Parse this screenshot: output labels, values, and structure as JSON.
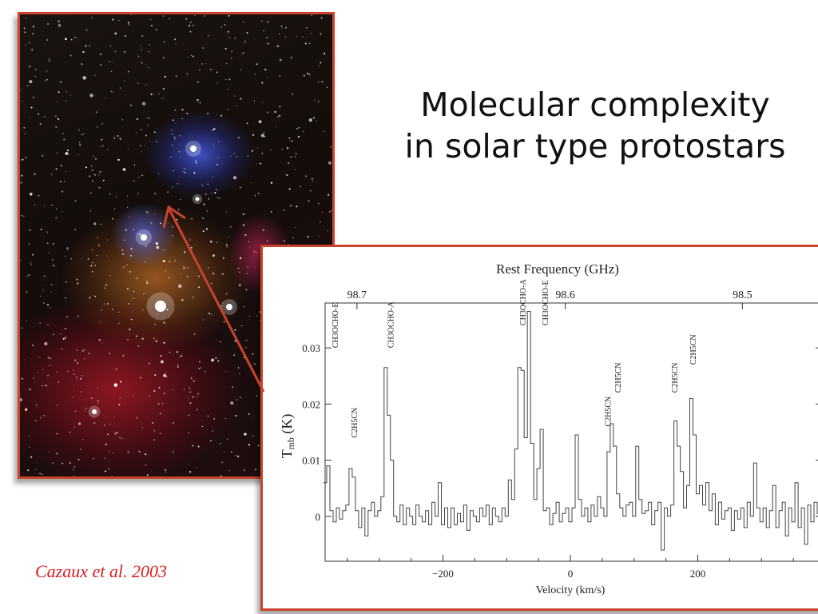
{
  "slide": {
    "title_line1": "Molecular complexity",
    "title_line2": "in solar type protostars",
    "citation": "Cazaux et al. 2003"
  },
  "colors": {
    "frame": "#c8442c",
    "citation": "#d81e1e",
    "arrow": "#c8442c"
  },
  "chart_data": {
    "type": "line",
    "top_axis_label": "Rest Frequency (GHz)",
    "top_ticks": [
      "98.7",
      "98.6",
      "98.5"
    ],
    "top_tick_values": [
      -335,
      -8,
      270
    ],
    "xlabel": "Velocity (km/s)",
    "ylabel": "T",
    "ylabel_sub": "mb",
    "ylabel_unit": "(K)",
    "x_ticks": [
      -200,
      0,
      200
    ],
    "x_tick_labels": [
      "−200",
      "0",
      "200"
    ],
    "y_ticks": [
      0,
      0.01,
      0.02,
      0.03
    ],
    "y_tick_labels": [
      "0",
      "0.01",
      "0.02",
      "0.03"
    ],
    "xlim": [
      -385,
      395
    ],
    "ylim": [
      -0.008,
      0.038
    ],
    "line_labels": [
      {
        "text": "CH3OCHO-E",
        "x": -370,
        "y": 0.03
      },
      {
        "text": "C2H5CN",
        "x": -340,
        "y": 0.014
      },
      {
        "text": "CH3OCHO-A",
        "x": -283,
        "y": 0.03
      },
      {
        "text": "CH3OCHO-A",
        "x": -75,
        "y": 0.034
      },
      {
        "text": "CH3OCHO-E",
        "x": -40,
        "y": 0.034
      },
      {
        "text": "C2H5CN",
        "x": 58,
        "y": 0.016
      },
      {
        "text": "C2H5CN",
        "x": 74,
        "y": 0.022
      },
      {
        "text": "C2H5CN",
        "x": 163,
        "y": 0.022
      },
      {
        "text": "C2H5CN",
        "x": 192,
        "y": 0.027
      }
    ],
    "series": [
      {
        "values": [
          [
            -385,
            0.006
          ],
          [
            -380,
            0.009
          ],
          [
            -375,
            0.001
          ],
          [
            -370,
            -0.001
          ],
          [
            -365,
            0.0015
          ],
          [
            -360,
            -0.0005
          ],
          [
            -355,
            0.001
          ],
          [
            -350,
            0.002
          ],
          [
            -345,
            0.0085
          ],
          [
            -340,
            0.007
          ],
          [
            -335,
            0.001
          ],
          [
            -330,
            -0.002
          ],
          [
            -325,
            0.0015
          ],
          [
            -320,
            -0.0035
          ],
          [
            -315,
            0.001
          ],
          [
            -310,
            0.0025
          ],
          [
            -305,
            0.0
          ],
          [
            -300,
            0.001
          ],
          [
            -295,
            0.0035
          ],
          [
            -290,
            0.0265
          ],
          [
            -285,
            0.018
          ],
          [
            -280,
            0.01
          ],
          [
            -275,
            0.0
          ],
          [
            -270,
            -0.001
          ],
          [
            -265,
            0.002
          ],
          [
            -260,
            -0.0015
          ],
          [
            -255,
            0.0015
          ],
          [
            -250,
            0.0
          ],
          [
            -245,
            -0.0015
          ],
          [
            -240,
            0.002
          ],
          [
            -235,
            0.0
          ],
          [
            -230,
            -0.001
          ],
          [
            -225,
            0.001
          ],
          [
            -220,
            -0.0015
          ],
          [
            -215,
            0.0025
          ],
          [
            -210,
            0.0
          ],
          [
            -205,
            0.006
          ],
          [
            -200,
            -0.0015
          ],
          [
            -195,
            0.0015
          ],
          [
            -190,
            -0.002
          ],
          [
            -185,
            0.0015
          ],
          [
            -180,
            -0.0015
          ],
          [
            -175,
            0.0005
          ],
          [
            -170,
            -0.001
          ],
          [
            -165,
            0.002
          ],
          [
            -160,
            -0.0025
          ],
          [
            -155,
            0.001
          ],
          [
            -150,
            0.0
          ],
          [
            -145,
            -0.001
          ],
          [
            -140,
            0.0015
          ],
          [
            -135,
            0.0
          ],
          [
            -130,
            0.002
          ],
          [
            -125,
            -0.0015
          ],
          [
            -120,
            0.0015
          ],
          [
            -115,
            0.0
          ],
          [
            -110,
            -0.001
          ],
          [
            -105,
            0.0015
          ],
          [
            -100,
            0.0
          ],
          [
            -95,
            0.0065
          ],
          [
            -90,
            0.003
          ],
          [
            -85,
            0.012
          ],
          [
            -80,
            0.0265
          ],
          [
            -75,
            0.026
          ],
          [
            -70,
            0.014
          ],
          [
            -65,
            0.0365
          ],
          [
            -60,
            0.013
          ],
          [
            -55,
            0.003
          ],
          [
            -50,
            0.0085
          ],
          [
            -45,
            0.0155
          ],
          [
            -40,
            0.001
          ],
          [
            -35,
            0.0015
          ],
          [
            -30,
            -0.0015
          ],
          [
            -25,
            0.0005
          ],
          [
            -20,
            0.0025
          ],
          [
            -15,
            -0.001
          ],
          [
            -10,
            0.0005
          ],
          [
            -5,
            0.0015
          ],
          [
            0,
            -0.001
          ],
          [
            5,
            0.0015
          ],
          [
            10,
            0.0145
          ],
          [
            15,
            0.003
          ],
          [
            20,
            0.0
          ],
          [
            25,
            0.0015
          ],
          [
            30,
            -0.001
          ],
          [
            35,
            0.002
          ],
          [
            40,
            0.0
          ],
          [
            45,
            0.0035
          ],
          [
            50,
            0.0015
          ],
          [
            55,
            0.0
          ],
          [
            60,
            0.0115
          ],
          [
            65,
            0.0165
          ],
          [
            70,
            0.0125
          ],
          [
            75,
            0.004
          ],
          [
            80,
            0.0015
          ],
          [
            85,
            0.0
          ],
          [
            90,
            0.002
          ],
          [
            95,
            0.0025
          ],
          [
            100,
            0.0
          ],
          [
            105,
            0.0125
          ],
          [
            110,
            0.003
          ],
          [
            115,
            0.0005
          ],
          [
            120,
            0.001
          ],
          [
            125,
            0.0025
          ],
          [
            130,
            -0.0015
          ],
          [
            135,
            0.001
          ],
          [
            140,
            0.0025
          ],
          [
            145,
            -0.006
          ],
          [
            150,
            0.0015
          ],
          [
            155,
            0.0
          ],
          [
            160,
            0.002
          ],
          [
            165,
            0.017
          ],
          [
            170,
            0.0125
          ],
          [
            175,
            0.008
          ],
          [
            180,
            0.0015
          ],
          [
            185,
            0.0055
          ],
          [
            190,
            0.021
          ],
          [
            195,
            0.0145
          ],
          [
            200,
            0.004
          ],
          [
            205,
            0.0055
          ],
          [
            210,
            0.002
          ],
          [
            215,
            0.006
          ],
          [
            220,
            0.001
          ],
          [
            225,
            0.004
          ],
          [
            230,
            -0.0015
          ],
          [
            235,
            0.0025
          ],
          [
            240,
            -0.0005
          ],
          [
            245,
            0.001
          ],
          [
            250,
            0.0015
          ],
          [
            255,
            -0.0025
          ],
          [
            260,
            0.001
          ],
          [
            265,
            -0.0005
          ],
          [
            270,
            0.0015
          ],
          [
            275,
            -0.002
          ],
          [
            280,
            0.0025
          ],
          [
            285,
            0.0
          ],
          [
            290,
            0.0095
          ],
          [
            295,
            0.0015
          ],
          [
            300,
            -0.001
          ],
          [
            305,
            0.0015
          ],
          [
            310,
            -0.002
          ],
          [
            315,
            0.001
          ],
          [
            320,
            0.0055
          ],
          [
            325,
            -0.002
          ],
          [
            330,
            0.001
          ],
          [
            335,
            0.0025
          ],
          [
            340,
            -0.0035
          ],
          [
            345,
            0.0015
          ],
          [
            350,
            -0.001
          ],
          [
            355,
            0.006
          ],
          [
            360,
            -0.002
          ],
          [
            365,
            0.0015
          ],
          [
            370,
            -0.005
          ],
          [
            375,
            0.002
          ],
          [
            380,
            -0.001
          ],
          [
            385,
            0.0025
          ],
          [
            390,
            0.0005
          ],
          [
            395,
            0.001
          ]
        ]
      }
    ]
  }
}
